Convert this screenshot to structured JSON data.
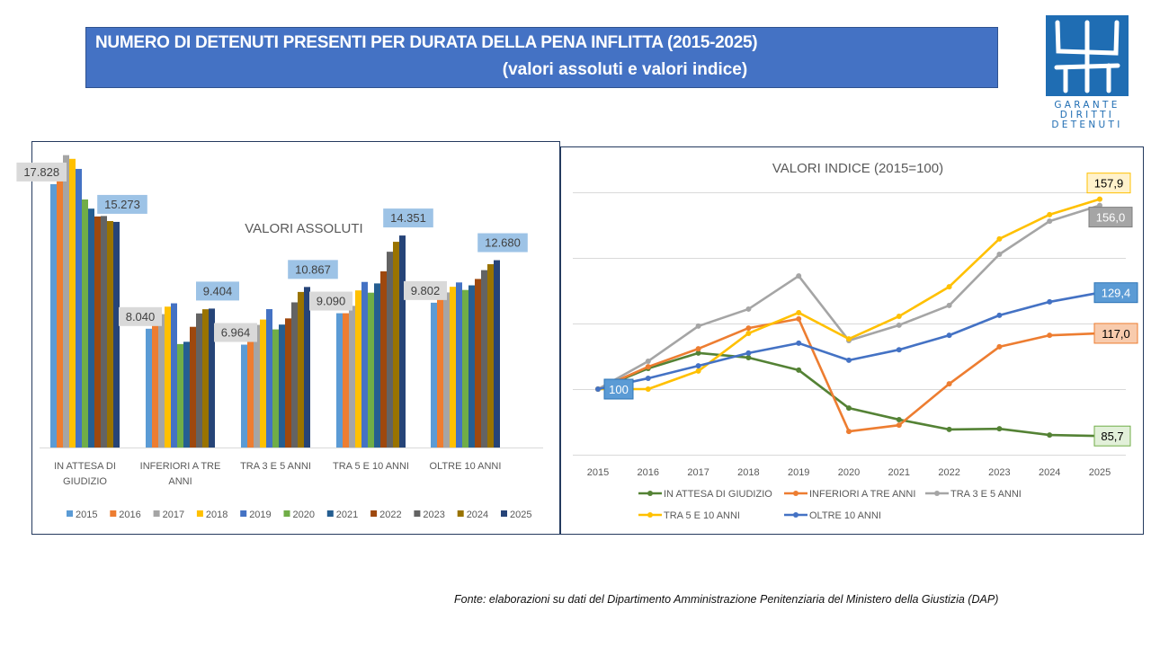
{
  "header": {
    "title_line1": "NUMERO DI DETENUTI PRESENTI PER DURATA DELLA PENA INFLITTA (2015-2025)",
    "title_line2": "(valori assoluti e valori indice)",
    "title_bg": "#4472c4"
  },
  "logo": {
    "icon": "garante-h-logo-icon",
    "lines": [
      "GARANTE",
      "DIRITTI",
      "DETENUTI"
    ],
    "color": "#1f6db3"
  },
  "source": "Fonte: elaborazioni su dati del Dipartimento Amministrazione Penitenziaria del Ministero della Giustizia (DAP)",
  "chart_data": [
    {
      "type": "bar",
      "title": "VALORI ASSOLUTI",
      "xlabel": "",
      "ylabel": "",
      "ylim": [
        0,
        20500
      ],
      "grid": false,
      "legend": "bottom",
      "categories": [
        "IN ATTESA DI GIUDIZIO",
        "INFERIORI A TRE ANNI",
        "TRA 3 E 5 ANNI",
        "TRA 5 E 10 ANNI",
        "OLTRE 10 ANNI"
      ],
      "category_lines": [
        [
          "IN ATTESA DI",
          "GIUDIZIO"
        ],
        [
          "INFERIORI A TRE",
          "ANNI"
        ],
        [
          "TRA 3 E 5 ANNI"
        ],
        [
          "TRA 5 E 10 ANNI"
        ],
        [
          "OLTRE 10 ANNI"
        ]
      ],
      "series": [
        {
          "name": "2015",
          "color": "#5b9bd5",
          "values": [
            17828,
            8040,
            6964,
            9090,
            9802
          ]
        },
        {
          "name": "2016",
          "color": "#ed7d31",
          "values": [
            18950,
            8587,
            7556,
            9090,
            10125
          ]
        },
        {
          "name": "2017",
          "color": "#a5a5a5",
          "values": [
            19790,
            9029,
            8301,
            9590,
            10498
          ]
        },
        {
          "name": "2018",
          "color": "#ffc000",
          "values": [
            19540,
            9535,
            8663,
            10635,
            10880
          ]
        },
        {
          "name": "2019",
          "color": "#4472c4",
          "values": [
            18860,
            9761,
            9367,
            11208,
            11174
          ]
        },
        {
          "name": "2020",
          "color": "#70ad47",
          "values": [
            16790,
            7003,
            7995,
            10481,
            10665
          ]
        },
        {
          "name": "2021",
          "color": "#255e91",
          "values": [
            16170,
            7156,
            8322,
            11108,
            10978
          ]
        },
        {
          "name": "2022",
          "color": "#9e480e",
          "values": [
            15640,
            8169,
            8740,
            11926,
            11410
          ]
        },
        {
          "name": "2023",
          "color": "#636363",
          "values": [
            15670,
            9077,
            9826,
            13253,
            12007
          ]
        },
        {
          "name": "2024",
          "color": "#997300",
          "values": [
            15330,
            9359,
            10530,
            13926,
            12409
          ]
        },
        {
          "name": "2025",
          "color": "#264478",
          "values": [
            15273,
            9404,
            10867,
            14351,
            12680
          ]
        }
      ],
      "data_labels": [
        {
          "category": 0,
          "series": "2015",
          "text": "17.828",
          "bg": "#d9d9d9"
        },
        {
          "category": 0,
          "series": "2025",
          "text": "15.273",
          "bg": "#9dc3e6"
        },
        {
          "category": 1,
          "series": "2015",
          "text": "8.040",
          "bg": "#d9d9d9"
        },
        {
          "category": 1,
          "series": "2025",
          "text": "9.404",
          "bg": "#9dc3e6"
        },
        {
          "category": 2,
          "series": "2015",
          "text": "6.964",
          "bg": "#d9d9d9"
        },
        {
          "category": 2,
          "series": "2025",
          "text": "10.867",
          "bg": "#9dc3e6"
        },
        {
          "category": 3,
          "series": "2015",
          "text": "9.090",
          "bg": "#d9d9d9"
        },
        {
          "category": 3,
          "series": "2025",
          "text": "14.351",
          "bg": "#9dc3e6"
        },
        {
          "category": 4,
          "series": "2015",
          "text": "9.802",
          "bg": "#d9d9d9"
        },
        {
          "category": 4,
          "series": "2025",
          "text": "12.680",
          "bg": "#9dc3e6"
        }
      ]
    },
    {
      "type": "line",
      "title": "VALORI INDICE (2015=100)",
      "xlabel": "",
      "ylabel": "",
      "ylim": [
        80,
        160
      ],
      "gridlines": [
        80,
        100,
        120,
        140,
        160
      ],
      "grid": true,
      "legend": "bottom",
      "x": [
        "2015",
        "2016",
        "2017",
        "2018",
        "2019",
        "2020",
        "2021",
        "2022",
        "2023",
        "2024",
        "2025"
      ],
      "series": [
        {
          "name": "IN ATTESA DI GIUDIZIO",
          "color": "#548235",
          "values": [
            100,
            106.3,
            111.0,
            109.6,
            105.8,
            94.2,
            90.7,
            87.7,
            87.9,
            86.0,
            85.7
          ]
        },
        {
          "name": "INFERIORI A TRE ANNI",
          "color": "#ed7d31",
          "values": [
            100,
            106.8,
            112.3,
            118.6,
            121.4,
            87.1,
            89.0,
            101.6,
            112.9,
            116.4,
            117.0
          ]
        },
        {
          "name": "TRA 3 E 5 ANNI",
          "color": "#a5a5a5",
          "values": [
            100,
            108.5,
            119.2,
            124.4,
            134.5,
            114.8,
            119.5,
            125.5,
            141.1,
            151.2,
            156.0
          ]
        },
        {
          "name": "TRA 5 E 10 ANNI",
          "color": "#ffc000",
          "values": [
            100,
            100,
            105.5,
            117.0,
            123.3,
            115.3,
            122.2,
            131.2,
            145.8,
            153.2,
            157.9
          ]
        },
        {
          "name": "OLTRE 10 ANNI",
          "color": "#4472c4",
          "values": [
            100,
            103.3,
            107.1,
            111.0,
            114.0,
            108.8,
            112.0,
            116.4,
            122.5,
            126.6,
            129.4
          ]
        }
      ],
      "data_labels": [
        {
          "series": 3,
          "point": 10,
          "text": "157,9",
          "bg": "#fff2cc",
          "border": "#ffc000",
          "fg": "#000000"
        },
        {
          "series": 2,
          "point": 10,
          "text": "156,0",
          "bg": "#a5a5a5",
          "border": "#7f7f7f",
          "fg": "#ffffff"
        },
        {
          "series": 4,
          "point": 10,
          "text": "129,4",
          "bg": "#5b9bd5",
          "border": "#2e75b6",
          "fg": "#ffffff"
        },
        {
          "series": 1,
          "point": 10,
          "text": "117,0",
          "bg": "#f8cbad",
          "border": "#ed7d31",
          "fg": "#000000"
        },
        {
          "series": 0,
          "point": 10,
          "text": "85,7",
          "bg": "#e2f0d9",
          "border": "#70ad47",
          "fg": "#000000"
        },
        {
          "series": 4,
          "point": 0,
          "text": "100",
          "bg": "#5b9bd5",
          "border": "#2e75b6",
          "fg": "#ffffff"
        }
      ]
    }
  ]
}
